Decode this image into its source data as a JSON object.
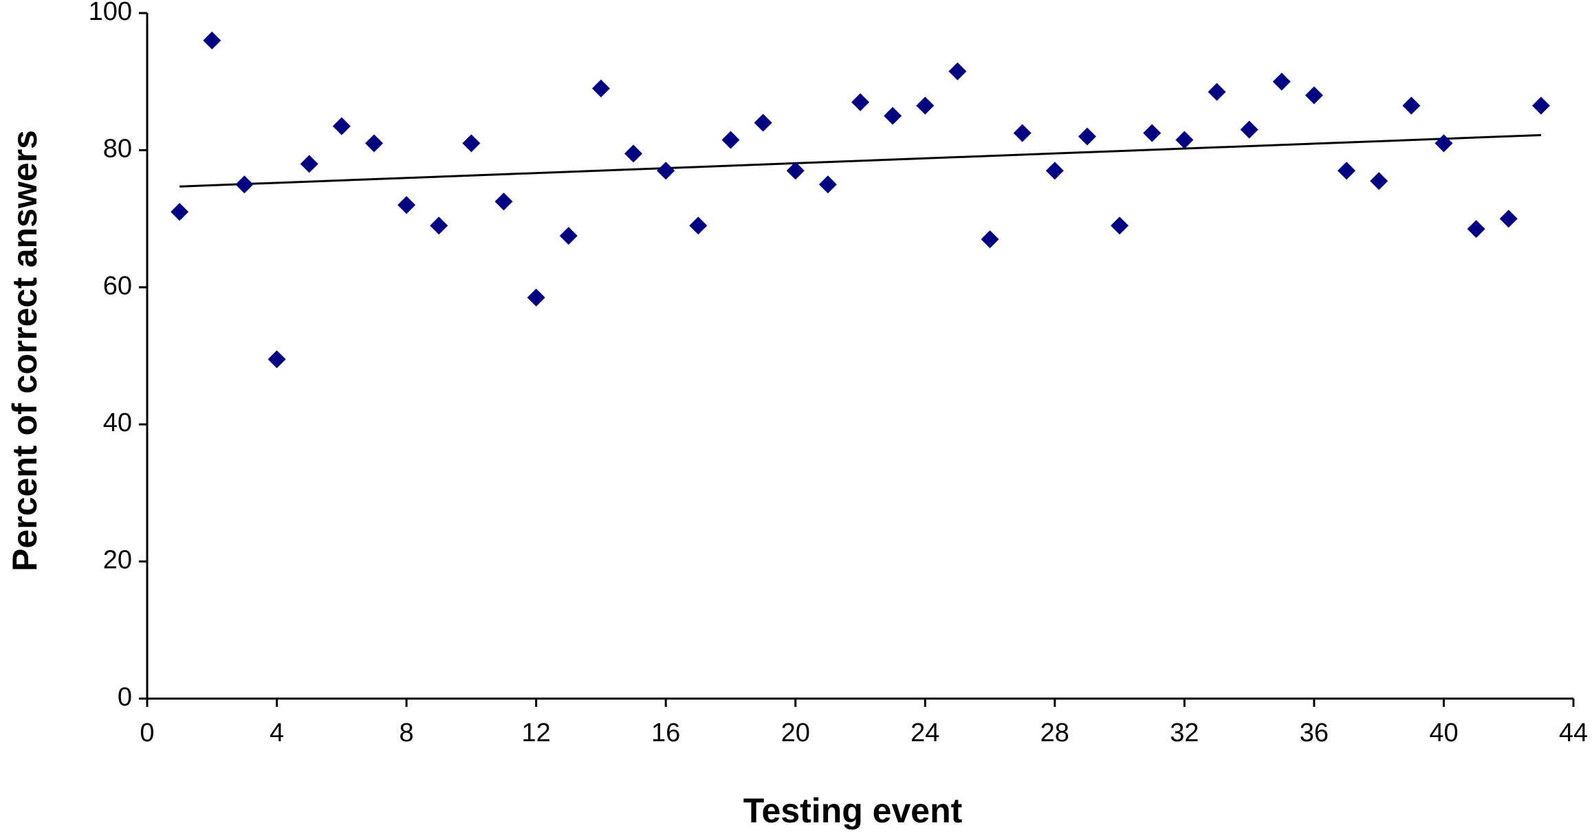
{
  "chart_data": {
    "type": "scatter",
    "x_label": "Testing event",
    "y_label": "Percent of correct answers",
    "x": [
      1,
      2,
      3,
      4,
      5,
      6,
      7,
      8,
      9,
      10,
      11,
      12,
      13,
      14,
      15,
      16,
      17,
      18,
      19,
      20,
      21,
      22,
      23,
      24,
      25,
      26,
      27,
      28,
      29,
      30,
      31,
      32,
      33,
      34,
      35,
      36,
      37,
      38,
      39,
      40,
      41,
      42,
      43
    ],
    "values": [
      71,
      96,
      75,
      49.5,
      78,
      83.5,
      81,
      72,
      69,
      81,
      72.5,
      58.5,
      67.5,
      89,
      79.5,
      77,
      69,
      81.5,
      84,
      77,
      75,
      87,
      85,
      86.5,
      91.5,
      67,
      82.5,
      77,
      82,
      69,
      82.5,
      81.5,
      88.5,
      83,
      90,
      88,
      77,
      75.5,
      86.5,
      81,
      68.5,
      70,
      86.5
    ],
    "color": "#000080",
    "trendline": {
      "x": [
        1,
        43
      ],
      "values": [
        74.7,
        82.2
      ],
      "color": "#000000"
    },
    "xlim": [
      0,
      44
    ],
    "xticks": [
      0,
      4,
      8,
      12,
      16,
      20,
      24,
      28,
      32,
      36,
      40,
      44
    ],
    "ylim": [
      0,
      100
    ],
    "yticks": [
      0,
      20,
      40,
      60,
      80,
      100
    ],
    "grid": false
  }
}
